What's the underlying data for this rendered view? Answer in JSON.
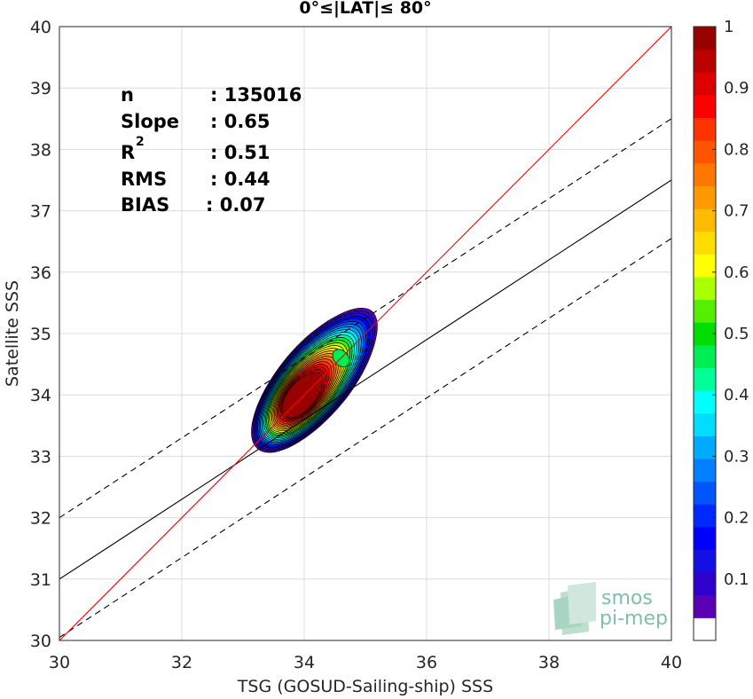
{
  "chart_data": {
    "type": "contour",
    "title": "0°≤|LAT|≤ 80°",
    "xlabel": "TSG (GOSUD-Sailing-ship) SSS",
    "ylabel": "Satellite SSS",
    "xlim": [
      30,
      40
    ],
    "ylim": [
      30,
      40
    ],
    "xticks": [
      "30",
      "32",
      "34",
      "36",
      "38",
      "40"
    ],
    "yticks": [
      "30",
      "31",
      "32",
      "33",
      "34",
      "35",
      "36",
      "37",
      "38",
      "39",
      "40"
    ],
    "grid": true,
    "stats": [
      {
        "label": "n",
        "value": ": 135016"
      },
      {
        "label": "Slope",
        "value": ": 0.65"
      },
      {
        "label": "R",
        "sup": "2",
        "value": ": 0.51"
      },
      {
        "label": "RMS",
        "value": ": 0.44"
      },
      {
        "label": "BIAS",
        "value": ": 0.07"
      }
    ],
    "lines": {
      "identity": {
        "slope": 1.0,
        "intercept": 0.0,
        "color": "#ff0000"
      },
      "fit": {
        "slope": 0.65,
        "intercept": 11.5,
        "color": "#000000"
      },
      "upper": {
        "slope": 0.65,
        "intercept": 12.5,
        "color": "#000000",
        "dashed": true
      },
      "lower": {
        "slope": 0.65,
        "intercept": 10.55,
        "color": "#000000",
        "dashed": true
      }
    },
    "density_peak": {
      "x": 33.97,
      "y": 34.0,
      "value": 1.0
    },
    "secondary_peak": {
      "x": 34.6,
      "y": 34.6,
      "value": 0.45
    },
    "colorbar": {
      "range": [
        0,
        1
      ],
      "ticks": [
        "0.1",
        "0.2",
        "0.3",
        "0.4",
        "0.5",
        "0.6",
        "0.7",
        "0.8",
        "0.9",
        "1"
      ],
      "colors": [
        "#ffffff",
        "#5b00b4",
        "#3000cc",
        "#1410e4",
        "#0000ff",
        "#0028ff",
        "#0055ff",
        "#0080ff",
        "#00aaff",
        "#00ddff",
        "#00ffff",
        "#00ff99",
        "#00ee55",
        "#00dd00",
        "#55ee00",
        "#aaff00",
        "#ffff00",
        "#ffdd00",
        "#ffbb00",
        "#ff9900",
        "#ff7700",
        "#ff5500",
        "#ff3300",
        "#ff0000",
        "#dd0000",
        "#bb0000",
        "#990000"
      ]
    },
    "logo": {
      "line1": "smos",
      "line2": "pi-mep"
    }
  }
}
